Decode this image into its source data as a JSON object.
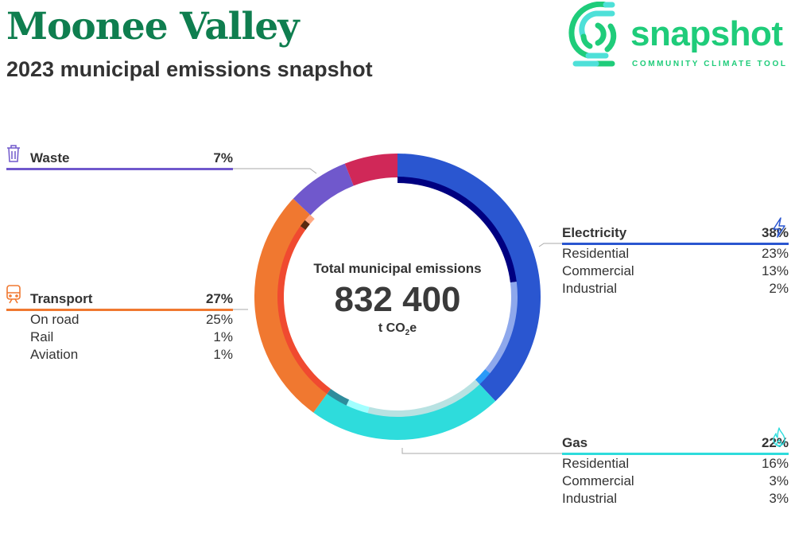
{
  "header": {
    "title": "Moonee Valley",
    "subtitle": "2023 municipal emissions snapshot"
  },
  "logo": {
    "name": "snapshot",
    "tagline": "COMMUNITY CLIMATE TOOL",
    "color": "#1fcc7a"
  },
  "center": {
    "label": "Total municipal emissions",
    "value": "832 400",
    "unit_prefix": "t CO",
    "unit_sub": "2",
    "unit_suffix": "e"
  },
  "chart_data": {
    "type": "donut",
    "total": 832400,
    "unit": "t CO2e",
    "series": [
      {
        "name": "Electricity",
        "value": 38,
        "color": "#2a56d0",
        "icon": "lightning-icon",
        "sub": [
          {
            "name": "Residential",
            "value": 23,
            "color": "#000080"
          },
          {
            "name": "Commercial",
            "value": 13,
            "color": "#8ea8ec"
          },
          {
            "name": "Industrial",
            "value": 2,
            "color": "#2a9af8"
          }
        ]
      },
      {
        "name": "Gas",
        "value": 22,
        "color": "#2edcdc",
        "icon": "flame-icon",
        "sub": [
          {
            "name": "Residential",
            "value": 16,
            "color": "#b8e2e2"
          },
          {
            "name": "Commercial",
            "value": 3,
            "color": "#a2ffff"
          },
          {
            "name": "Industrial",
            "value": 3,
            "color": "#2e8c9c"
          }
        ]
      },
      {
        "name": "Transport",
        "value": 27,
        "color": "#f07830",
        "icon": "train-icon",
        "sub": [
          {
            "name": "On road",
            "value": 25,
            "color": "#f04a30"
          },
          {
            "name": "Rail",
            "value": 1,
            "color": "#5a2a10"
          },
          {
            "name": "Aviation",
            "value": 1,
            "color": "#ffa882"
          }
        ]
      },
      {
        "name": "Waste",
        "value": 7,
        "color": "#7058cc",
        "icon": "trash-icon",
        "sub": []
      },
      {
        "name": "",
        "value": 6,
        "color": "#d02858",
        "sub": []
      }
    ]
  },
  "labels": {
    "waste": {
      "name": "Waste",
      "pct": "7%"
    },
    "transport": {
      "name": "Transport",
      "pct": "27%",
      "rows": [
        {
          "name": "On road",
          "pct": "25%"
        },
        {
          "name": "Rail",
          "pct": "1%"
        },
        {
          "name": "Aviation",
          "pct": "1%"
        }
      ]
    },
    "electricity": {
      "name": "Electricity",
      "pct": "38%",
      "rows": [
        {
          "name": "Residential",
          "pct": "23%"
        },
        {
          "name": "Commercial",
          "pct": "13%"
        },
        {
          "name": "Industrial",
          "pct": "2%"
        }
      ]
    },
    "gas": {
      "name": "Gas",
      "pct": "22%",
      "rows": [
        {
          "name": "Residential",
          "pct": "16%"
        },
        {
          "name": "Commercial",
          "pct": "3%"
        },
        {
          "name": "Industrial",
          "pct": "3%"
        }
      ]
    }
  }
}
